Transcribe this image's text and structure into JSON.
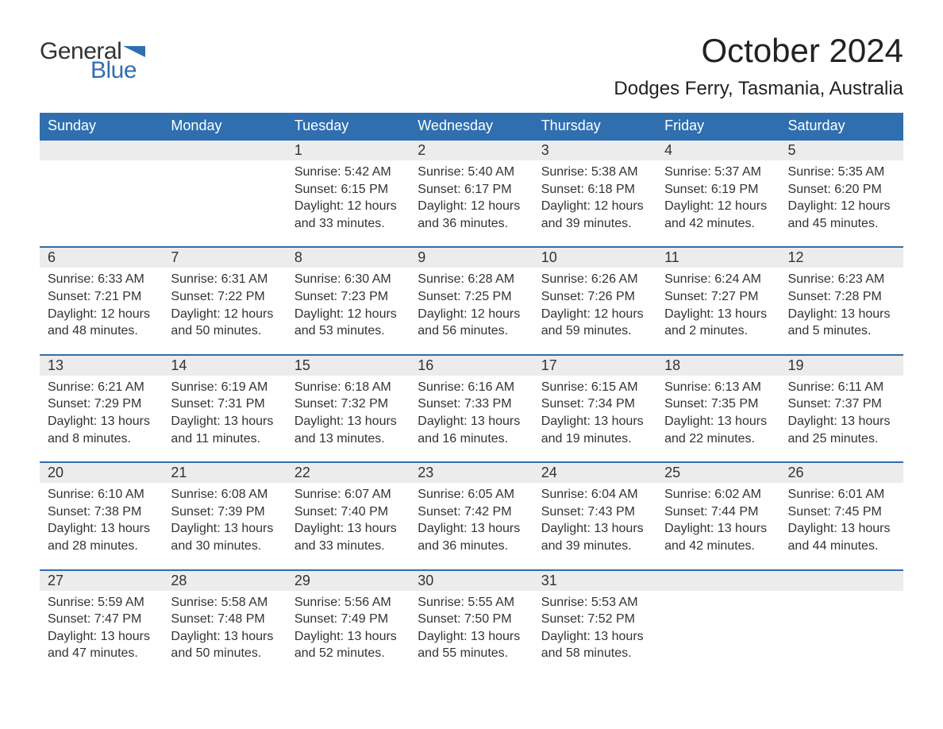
{
  "logo": {
    "text1": "General",
    "text2": "Blue",
    "flag_color": "#2f6fb0"
  },
  "title": "October 2024",
  "location": "Dodges Ferry, Tasmania, Australia",
  "day_headers": [
    "Sunday",
    "Monday",
    "Tuesday",
    "Wednesday",
    "Thursday",
    "Friday",
    "Saturday"
  ],
  "header_bg": "#2f6fb0",
  "header_fg": "#ffffff",
  "row_divider": "#2f6fb0",
  "daynum_bg": "#ececec",
  "text_color": "#333333",
  "weeks": [
    [
      null,
      null,
      {
        "n": "1",
        "sunrise": "Sunrise: 5:42 AM",
        "sunset": "Sunset: 6:15 PM",
        "day1": "Daylight: 12 hours",
        "day2": "and 33 minutes."
      },
      {
        "n": "2",
        "sunrise": "Sunrise: 5:40 AM",
        "sunset": "Sunset: 6:17 PM",
        "day1": "Daylight: 12 hours",
        "day2": "and 36 minutes."
      },
      {
        "n": "3",
        "sunrise": "Sunrise: 5:38 AM",
        "sunset": "Sunset: 6:18 PM",
        "day1": "Daylight: 12 hours",
        "day2": "and 39 minutes."
      },
      {
        "n": "4",
        "sunrise": "Sunrise: 5:37 AM",
        "sunset": "Sunset: 6:19 PM",
        "day1": "Daylight: 12 hours",
        "day2": "and 42 minutes."
      },
      {
        "n": "5",
        "sunrise": "Sunrise: 5:35 AM",
        "sunset": "Sunset: 6:20 PM",
        "day1": "Daylight: 12 hours",
        "day2": "and 45 minutes."
      }
    ],
    [
      {
        "n": "6",
        "sunrise": "Sunrise: 6:33 AM",
        "sunset": "Sunset: 7:21 PM",
        "day1": "Daylight: 12 hours",
        "day2": "and 48 minutes."
      },
      {
        "n": "7",
        "sunrise": "Sunrise: 6:31 AM",
        "sunset": "Sunset: 7:22 PM",
        "day1": "Daylight: 12 hours",
        "day2": "and 50 minutes."
      },
      {
        "n": "8",
        "sunrise": "Sunrise: 6:30 AM",
        "sunset": "Sunset: 7:23 PM",
        "day1": "Daylight: 12 hours",
        "day2": "and 53 minutes."
      },
      {
        "n": "9",
        "sunrise": "Sunrise: 6:28 AM",
        "sunset": "Sunset: 7:25 PM",
        "day1": "Daylight: 12 hours",
        "day2": "and 56 minutes."
      },
      {
        "n": "10",
        "sunrise": "Sunrise: 6:26 AM",
        "sunset": "Sunset: 7:26 PM",
        "day1": "Daylight: 12 hours",
        "day2": "and 59 minutes."
      },
      {
        "n": "11",
        "sunrise": "Sunrise: 6:24 AM",
        "sunset": "Sunset: 7:27 PM",
        "day1": "Daylight: 13 hours",
        "day2": "and 2 minutes."
      },
      {
        "n": "12",
        "sunrise": "Sunrise: 6:23 AM",
        "sunset": "Sunset: 7:28 PM",
        "day1": "Daylight: 13 hours",
        "day2": "and 5 minutes."
      }
    ],
    [
      {
        "n": "13",
        "sunrise": "Sunrise: 6:21 AM",
        "sunset": "Sunset: 7:29 PM",
        "day1": "Daylight: 13 hours",
        "day2": "and 8 minutes."
      },
      {
        "n": "14",
        "sunrise": "Sunrise: 6:19 AM",
        "sunset": "Sunset: 7:31 PM",
        "day1": "Daylight: 13 hours",
        "day2": "and 11 minutes."
      },
      {
        "n": "15",
        "sunrise": "Sunrise: 6:18 AM",
        "sunset": "Sunset: 7:32 PM",
        "day1": "Daylight: 13 hours",
        "day2": "and 13 minutes."
      },
      {
        "n": "16",
        "sunrise": "Sunrise: 6:16 AM",
        "sunset": "Sunset: 7:33 PM",
        "day1": "Daylight: 13 hours",
        "day2": "and 16 minutes."
      },
      {
        "n": "17",
        "sunrise": "Sunrise: 6:15 AM",
        "sunset": "Sunset: 7:34 PM",
        "day1": "Daylight: 13 hours",
        "day2": "and 19 minutes."
      },
      {
        "n": "18",
        "sunrise": "Sunrise: 6:13 AM",
        "sunset": "Sunset: 7:35 PM",
        "day1": "Daylight: 13 hours",
        "day2": "and 22 minutes."
      },
      {
        "n": "19",
        "sunrise": "Sunrise: 6:11 AM",
        "sunset": "Sunset: 7:37 PM",
        "day1": "Daylight: 13 hours",
        "day2": "and 25 minutes."
      }
    ],
    [
      {
        "n": "20",
        "sunrise": "Sunrise: 6:10 AM",
        "sunset": "Sunset: 7:38 PM",
        "day1": "Daylight: 13 hours",
        "day2": "and 28 minutes."
      },
      {
        "n": "21",
        "sunrise": "Sunrise: 6:08 AM",
        "sunset": "Sunset: 7:39 PM",
        "day1": "Daylight: 13 hours",
        "day2": "and 30 minutes."
      },
      {
        "n": "22",
        "sunrise": "Sunrise: 6:07 AM",
        "sunset": "Sunset: 7:40 PM",
        "day1": "Daylight: 13 hours",
        "day2": "and 33 minutes."
      },
      {
        "n": "23",
        "sunrise": "Sunrise: 6:05 AM",
        "sunset": "Sunset: 7:42 PM",
        "day1": "Daylight: 13 hours",
        "day2": "and 36 minutes."
      },
      {
        "n": "24",
        "sunrise": "Sunrise: 6:04 AM",
        "sunset": "Sunset: 7:43 PM",
        "day1": "Daylight: 13 hours",
        "day2": "and 39 minutes."
      },
      {
        "n": "25",
        "sunrise": "Sunrise: 6:02 AM",
        "sunset": "Sunset: 7:44 PM",
        "day1": "Daylight: 13 hours",
        "day2": "and 42 minutes."
      },
      {
        "n": "26",
        "sunrise": "Sunrise: 6:01 AM",
        "sunset": "Sunset: 7:45 PM",
        "day1": "Daylight: 13 hours",
        "day2": "and 44 minutes."
      }
    ],
    [
      {
        "n": "27",
        "sunrise": "Sunrise: 5:59 AM",
        "sunset": "Sunset: 7:47 PM",
        "day1": "Daylight: 13 hours",
        "day2": "and 47 minutes."
      },
      {
        "n": "28",
        "sunrise": "Sunrise: 5:58 AM",
        "sunset": "Sunset: 7:48 PM",
        "day1": "Daylight: 13 hours",
        "day2": "and 50 minutes."
      },
      {
        "n": "29",
        "sunrise": "Sunrise: 5:56 AM",
        "sunset": "Sunset: 7:49 PM",
        "day1": "Daylight: 13 hours",
        "day2": "and 52 minutes."
      },
      {
        "n": "30",
        "sunrise": "Sunrise: 5:55 AM",
        "sunset": "Sunset: 7:50 PM",
        "day1": "Daylight: 13 hours",
        "day2": "and 55 minutes."
      },
      {
        "n": "31",
        "sunrise": "Sunrise: 5:53 AM",
        "sunset": "Sunset: 7:52 PM",
        "day1": "Daylight: 13 hours",
        "day2": "and 58 minutes."
      },
      null,
      null
    ]
  ]
}
